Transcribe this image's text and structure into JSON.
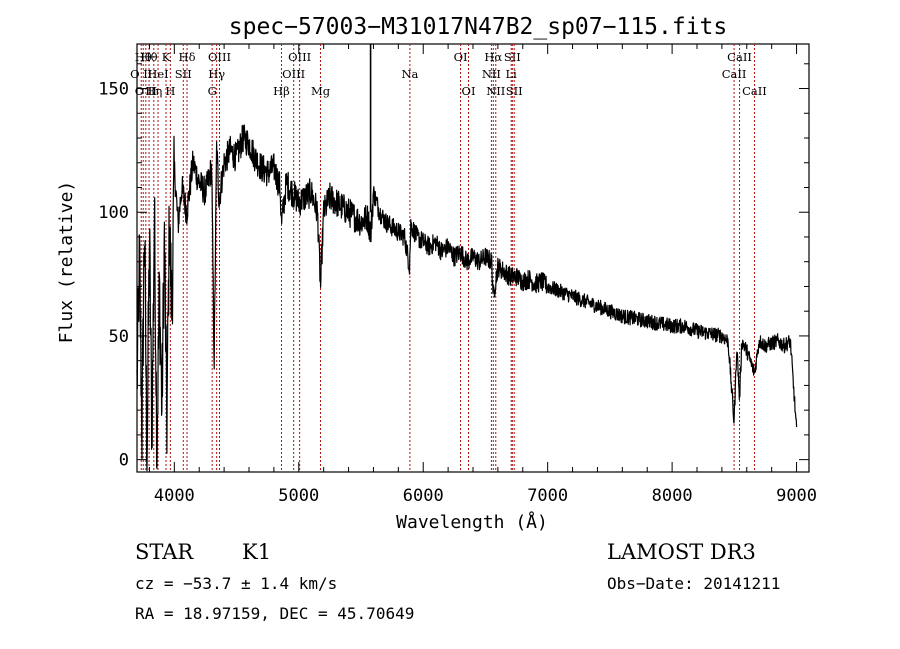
{
  "chart_data": {
    "type": "line",
    "title": "spec−57003−M31017N47B2_sp07−115.fits",
    "xlabel": "Wavelength (Å)",
    "ylabel": "Flux (relative)",
    "xlim": [
      3700,
      9100
    ],
    "ylim": [
      -5,
      168
    ],
    "xticks": [
      4000,
      5000,
      6000,
      7000,
      8000,
      9000
    ],
    "yticks": [
      0,
      50,
      100,
      150
    ],
    "series": [
      {
        "name": "flux",
        "x": [
          3700,
          3720,
          3740,
          3760,
          3780,
          3800,
          3820,
          3840,
          3860,
          3880,
          3900,
          3920,
          3940,
          3960,
          3980,
          4000,
          4030,
          4060,
          4100,
          4150,
          4200,
          4250,
          4300,
          4320,
          4340,
          4360,
          4400,
          4450,
          4500,
          4550,
          4600,
          4650,
          4700,
          4750,
          4800,
          4850,
          4861,
          4900,
          4950,
          5000,
          5050,
          5100,
          5150,
          5175,
          5200,
          5250,
          5300,
          5350,
          5400,
          5450,
          5500,
          5550,
          5580,
          5600,
          5650,
          5700,
          5750,
          5800,
          5850,
          5890,
          5900,
          5950,
          6000,
          6050,
          6100,
          6150,
          6200,
          6250,
          6300,
          6350,
          6400,
          6450,
          6500,
          6550,
          6563,
          6600,
          6650,
          6700,
          6750,
          6800,
          6850,
          6900,
          6950,
          7000,
          7100,
          7200,
          7300,
          7400,
          7500,
          7600,
          7700,
          7800,
          7900,
          8000,
          8100,
          8200,
          8300,
          8400,
          8450,
          8498,
          8520,
          8542,
          8560,
          8600,
          8662,
          8700,
          8750,
          8800,
          8850,
          8900,
          8950,
          9000
        ],
        "y": [
          30,
          82,
          12,
          95,
          2,
          88,
          10,
          100,
          5,
          70,
          20,
          90,
          15,
          95,
          60,
          118,
          95,
          110,
          100,
          120,
          112,
          108,
          118,
          40,
          126,
          105,
          120,
          125,
          122,
          130,
          128,
          122,
          118,
          116,
          118,
          110,
          95,
          112,
          108,
          104,
          106,
          108,
          100,
          70,
          100,
          106,
          104,
          102,
          100,
          98,
          96,
          98,
          92,
          108,
          100,
          96,
          94,
          92,
          90,
          78,
          95,
          90,
          88,
          86,
          88,
          84,
          86,
          82,
          84,
          80,
          82,
          80,
          82,
          80,
          66,
          78,
          76,
          74,
          74,
          72,
          73,
          71,
          72,
          70,
          68,
          66,
          64,
          62,
          60,
          58,
          57,
          56,
          55,
          54,
          54,
          52,
          51,
          50,
          48,
          15,
          46,
          24,
          48,
          44,
          35,
          48,
          46,
          47,
          48,
          46,
          48,
          12
        ]
      }
    ],
    "annotations": [
      {
        "wavelength": 3734,
        "label": "O II",
        "row": 2
      },
      {
        "wavelength": 3750,
        "label": "Hθ",
        "row": 1
      },
      {
        "wavelength": 3771,
        "label": "O II",
        "row": 3
      },
      {
        "wavelength": 3797,
        "label": "Hθ",
        "row": 1
      },
      {
        "wavelength": 3835,
        "label": "Hη",
        "row": 3
      },
      {
        "wavelength": 3869,
        "label": "HeI",
        "row": 2
      },
      {
        "wavelength": 3933,
        "label": "K",
        "row": 1
      },
      {
        "wavelength": 3968,
        "label": "H",
        "row": 3
      },
      {
        "wavelength": 4072,
        "label": "SII",
        "row": 2
      },
      {
        "wavelength": 4102,
        "label": "Hδ",
        "row": 1
      },
      {
        "wavelength": 4304,
        "label": "G",
        "row": 3
      },
      {
        "wavelength": 4340,
        "label": "Hγ",
        "row": 2
      },
      {
        "wavelength": 4363,
        "label": "OIII",
        "row": 1
      },
      {
        "wavelength": 4861,
        "label": "Hβ",
        "row": 3
      },
      {
        "wavelength": 4959,
        "label": "OIII",
        "row": 2
      },
      {
        "wavelength": 5007,
        "label": "OIII",
        "row": 1
      },
      {
        "wavelength": 5175,
        "label": "Mg",
        "row": 3
      },
      {
        "wavelength": 5893,
        "label": "Na",
        "row": 2
      },
      {
        "wavelength": 6300,
        "label": "OI",
        "row": 1
      },
      {
        "wavelength": 6364,
        "label": "OI",
        "row": 3
      },
      {
        "wavelength": 6548,
        "label": "NII",
        "row": 2
      },
      {
        "wavelength": 6563,
        "label": "Hα",
        "row": 1
      },
      {
        "wavelength": 6583,
        "label": "NII",
        "row": 3
      },
      {
        "wavelength": 6707,
        "label": "Li",
        "row": 2
      },
      {
        "wavelength": 6716,
        "label": "SII",
        "row": 1
      },
      {
        "wavelength": 6731,
        "label": "SII",
        "row": 3
      },
      {
        "wavelength": 8498,
        "label": "CaII",
        "row": 2
      },
      {
        "wavelength": 8542,
        "label": "CaII",
        "row": 1
      },
      {
        "wavelength": 8662,
        "label": "CaII",
        "row": 3
      }
    ]
  },
  "info": {
    "object_class": "STAR",
    "subclass": "K1",
    "survey": "LAMOST DR3",
    "cz": "cz = −53.7 ± 1.4 km/s",
    "obs_date": "Obs−Date: 20141211",
    "coords": "RA =  18.97159, DEC =  45.70649"
  }
}
